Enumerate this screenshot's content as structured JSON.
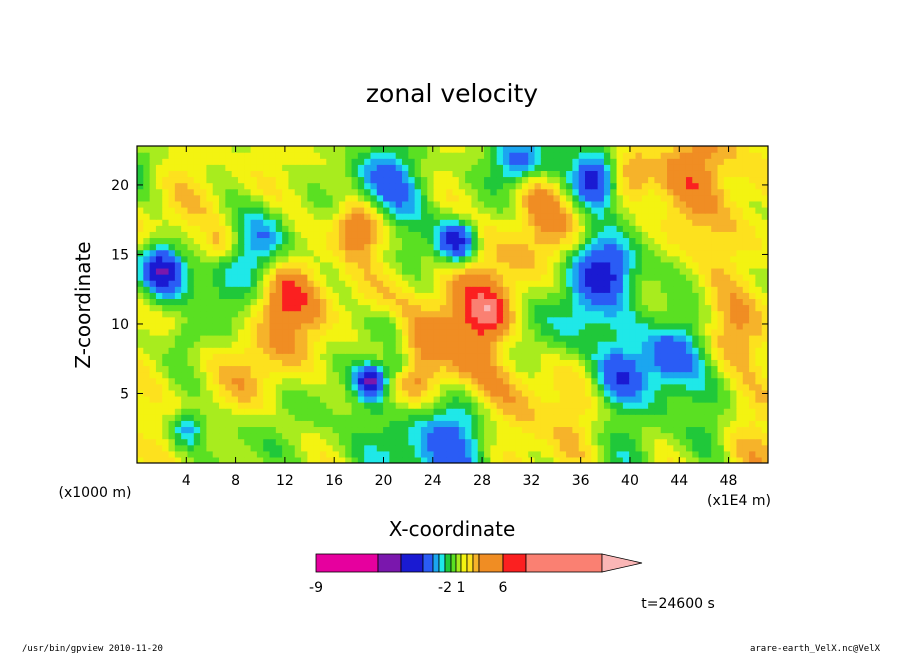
{
  "chart_data": {
    "type": "heatmap",
    "title": "zonal velocity",
    "xlabel": "X-coordinate",
    "ylabel": "Z-coordinate",
    "x_unit": "(x1E4 m)",
    "y_unit": "(x1000 m)",
    "xlim": [
      0,
      51.2
    ],
    "ylim": [
      0,
      22.8
    ],
    "x_ticks": [
      4,
      8,
      12,
      16,
      20,
      24,
      28,
      32,
      36,
      40,
      44,
      48
    ],
    "y_ticks": [
      5,
      10,
      15,
      20
    ],
    "colorbar": {
      "tick_labels": [
        "-9",
        "-2",
        "1",
        "6"
      ],
      "tick_values": [
        -9,
        -2,
        1,
        6
      ],
      "levels": [
        -15,
        -10,
        -8,
        -6,
        -4,
        -3,
        -2,
        -1,
        0,
        1,
        2,
        3,
        4,
        6,
        8,
        10,
        15
      ],
      "colors": [
        "#e6009e",
        "#7a17ad",
        "#1a1ad2",
        "#2a5cf5",
        "#1ba6f0",
        "#1fe8e8",
        "#20c83a",
        "#5ae022",
        "#a8ec1e",
        "#f3f311",
        "#fde11e",
        "#f6b32a",
        "#f08d23",
        "#fb2020",
        "#fa8072",
        "#fab6b6"
      ],
      "extend": "max"
    },
    "time_label": "t=24600 s"
  },
  "footer": {
    "left": "/usr/bin/gpview   2010-11-20",
    "right": "arare-earth_VelX.nc@VelX"
  }
}
